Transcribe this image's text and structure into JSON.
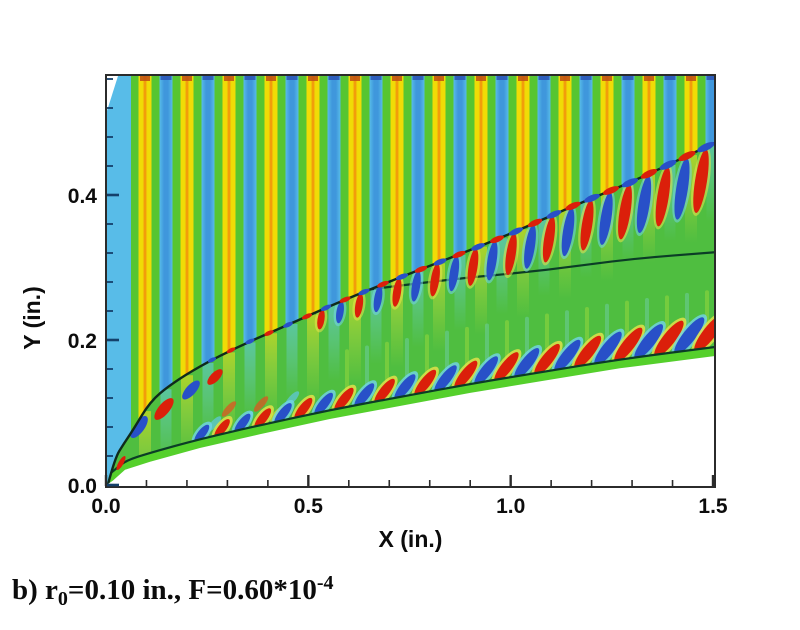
{
  "figure": {
    "caption": {
      "prefix": "b) r",
      "sub": "0",
      "mid": "=0.10 in., F=0.60*10",
      "sup": "-4"
    },
    "axes": {
      "x": {
        "label": "X (in.)",
        "tick_labels": [
          "0.0",
          "0.5",
          "1.0",
          "1.5"
        ],
        "tick_values": [
          0,
          0.5,
          1.0,
          1.5
        ],
        "minor_step": 0.1,
        "range": [
          0,
          1.5
        ]
      },
      "y": {
        "label": "Y (in.)",
        "tick_labels": [
          "0.0",
          "0.2",
          "0.4"
        ],
        "tick_values": [
          0,
          0.2,
          0.4
        ],
        "minor_step": 0.04,
        "range": [
          0,
          0.566
        ]
      }
    }
  },
  "chart_data": {
    "type": "heatmap",
    "subtype": "cfd-contour-field",
    "title": "",
    "xlabel": "X (in.)",
    "ylabel": "Y (in.)",
    "x_range": [
      0,
      1.5
    ],
    "y_range": [
      0,
      0.566
    ],
    "grid": false,
    "legend": "none",
    "description": "Instantaneous disturbance-field contours over a blunted cone: planar freestream acoustic waves appear as vertical yellow/blue stripes, a bow shock curve carries alternating red/blue wave beads with hanging teardrop packets behind it, a smooth entropy-layer edge line extends downstream, and tilted red/blue second-mode wave packets ride along the boundary-layer edge above the white body surface.",
    "freestream_waves": {
      "wavelength_in": 0.1038,
      "stripe_sequence": [
        "green",
        "yellow-orange",
        "green",
        "sky-blue"
      ],
      "first_yellow_center_in": 0.0964,
      "first_blue_center_in": 0.0445,
      "stripe_width_in": 0.0321,
      "left_edge_blue_band_in": [
        0,
        0.062
      ]
    },
    "shock_curve_in": [
      [
        0.005,
        0.001
      ],
      [
        0.022,
        0.037
      ],
      [
        0.044,
        0.057
      ],
      [
        0.067,
        0.076
      ],
      [
        0.109,
        0.115
      ],
      [
        0.158,
        0.138
      ],
      [
        0.232,
        0.164
      ],
      [
        0.331,
        0.192
      ],
      [
        0.442,
        0.219
      ],
      [
        0.566,
        0.25
      ],
      [
        0.702,
        0.281
      ],
      [
        0.85,
        0.313
      ],
      [
        0.998,
        0.346
      ],
      [
        1.146,
        0.383
      ],
      [
        1.295,
        0.417
      ],
      [
        1.406,
        0.446
      ],
      [
        1.505,
        0.472
      ]
    ],
    "body_surface_in": [
      [
        0.017,
        0.006
      ],
      [
        0.047,
        0.021
      ],
      [
        0.109,
        0.032
      ],
      [
        0.232,
        0.051
      ],
      [
        0.38,
        0.07
      ],
      [
        0.553,
        0.091
      ],
      [
        0.726,
        0.109
      ],
      [
        0.9,
        0.127
      ],
      [
        1.072,
        0.143
      ],
      [
        1.27,
        0.161
      ],
      [
        1.505,
        0.178
      ]
    ],
    "entropy_line_in": [
      [
        0.641,
        0.269
      ],
      [
        0.85,
        0.284
      ],
      [
        1.072,
        0.295
      ],
      [
        1.295,
        0.312
      ],
      [
        1.505,
        0.321
      ]
    ],
    "boundary_layer_packets": {
      "start_x_in": 0.22,
      "end_x_in": 1.49,
      "spacing_in": 0.0494,
      "colors": [
        "blue",
        "red"
      ],
      "tilt_deg": 38
    },
    "shock_packets": {
      "start_x_in": 0.53,
      "end_x_in": 1.48,
      "spacing_in": 0.047,
      "colors": [
        "blue",
        "red"
      ],
      "tilt_deg": 9
    },
    "colors": {
      "stripe_green": "#57C531",
      "stripe_yellow": "#F0DC06",
      "stripe_orange": "#F28C0C",
      "stripe_blue": "#58BCE8",
      "stripe_blue_core": "#3F97DC",
      "cap_orange": "#BF4E14",
      "cap_blue": "#2B50B4",
      "field_green": "#4FBE40",
      "band_green": "#55D02B",
      "line_dark": "#0B3D26",
      "shock_dark": "#0F2A1C",
      "wave_red": "#DB1F0A",
      "wave_blue": "#2850C8",
      "halo_yellow": "#E9E44A",
      "halo_cyan": "#72D4E9",
      "axis": "#2B2B2B",
      "tick_y": "#14406B",
      "text": "#0C0C0C",
      "body": "#FFFFFF"
    }
  }
}
